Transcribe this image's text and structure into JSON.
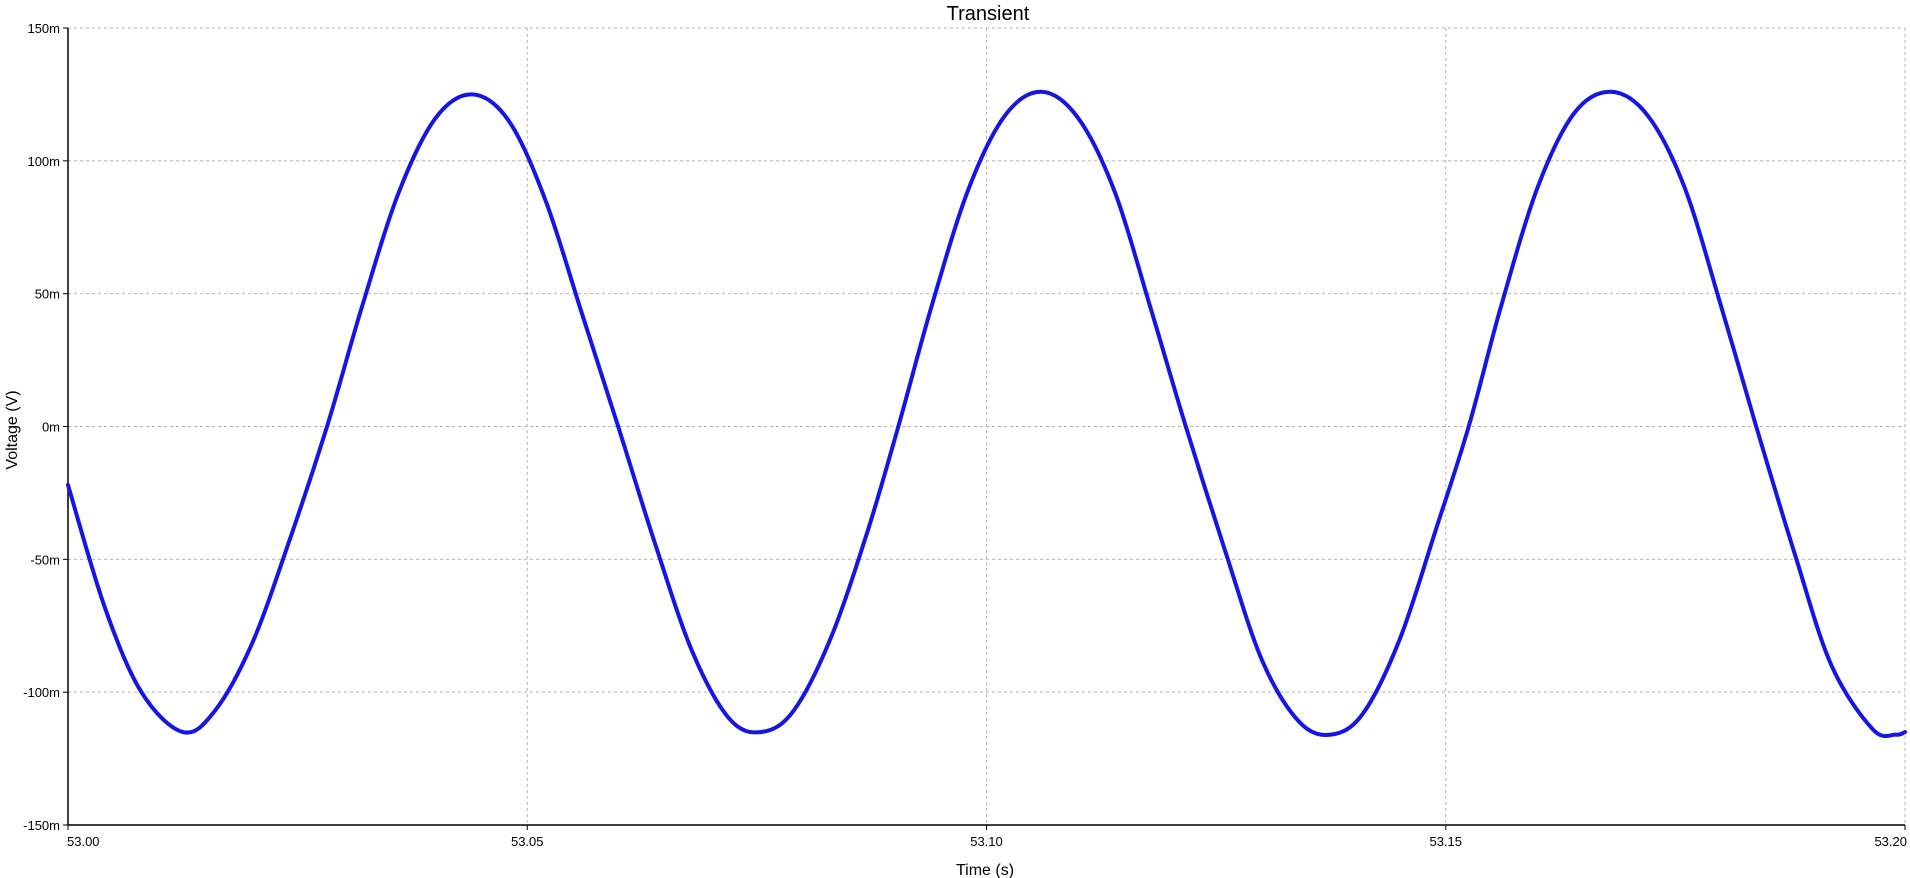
{
  "chart_data": {
    "type": "line",
    "title": "Transient",
    "xlabel": "Time (s)",
    "ylabel": "Voltage (V)",
    "xlim": [
      53.0,
      53.2
    ],
    "ylim": [
      -0.15,
      0.15
    ],
    "grid": true,
    "grid_style": "dashed",
    "x_ticks": [
      53.0,
      53.05,
      53.1,
      53.15,
      53.2
    ],
    "x_tick_labels": [
      "53.00",
      "53.05",
      "53.10",
      "53.15",
      "53.20"
    ],
    "y_ticks": [
      -0.15,
      -0.1,
      -0.05,
      0,
      0.05,
      0.1,
      0.15
    ],
    "y_tick_labels": [
      "-150m",
      "-100m",
      "-50m",
      "0m",
      "50m",
      "100m",
      "150m"
    ],
    "series": [
      {
        "color": "#1515e6",
        "x": [
          53.0,
          53.004,
          53.008,
          53.0125,
          53.016,
          53.02,
          53.024,
          53.0282,
          53.032,
          53.036,
          53.04,
          53.044,
          53.048,
          53.052,
          53.056,
          53.0599,
          53.064,
          53.068,
          53.072,
          53.0755,
          53.079,
          53.083,
          53.087,
          53.0904,
          53.094,
          53.098,
          53.102,
          53.106,
          53.11,
          53.114,
          53.118,
          53.1217,
          53.126,
          53.13,
          53.134,
          53.1375,
          53.141,
          53.145,
          53.149,
          53.1525,
          53.156,
          53.16,
          53.164,
          53.168,
          53.172,
          53.176,
          53.18,
          53.1838,
          53.188,
          53.192,
          53.1965,
          53.199,
          53.2
        ],
        "y": [
          -0.022,
          -0.068,
          -0.1,
          -0.115,
          -0.107,
          -0.082,
          -0.044,
          0.0,
          0.045,
          0.088,
          0.116,
          0.125,
          0.115,
          0.085,
          0.042,
          0.0,
          -0.045,
          -0.085,
          -0.11,
          -0.115,
          -0.107,
          -0.08,
          -0.04,
          0.0,
          0.045,
          0.089,
          0.117,
          0.126,
          0.116,
          0.088,
          0.043,
          0.0,
          -0.047,
          -0.088,
          -0.111,
          -0.116,
          -0.108,
          -0.08,
          -0.038,
          0.0,
          0.045,
          0.09,
          0.118,
          0.126,
          0.117,
          0.09,
          0.045,
          0.0,
          -0.048,
          -0.09,
          -0.114,
          -0.116,
          -0.115
        ]
      }
    ]
  }
}
